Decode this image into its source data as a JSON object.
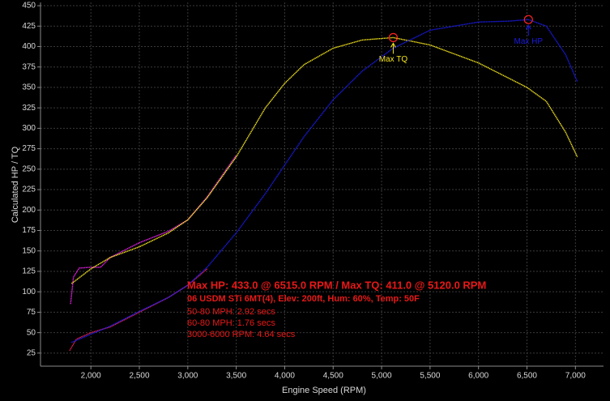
{
  "chart_data": {
    "type": "line",
    "xlabel": "Engine Speed (RPM)",
    "ylabel": "Calculated HP / TQ",
    "xlim": [
      1480,
      7290
    ],
    "ylim": [
      9,
      454
    ],
    "xticks": [
      {
        "value": 2000,
        "label": "2,000"
      },
      {
        "value": 2500,
        "label": "2,500"
      },
      {
        "value": 3000,
        "label": "3,000"
      },
      {
        "value": 3500,
        "label": "3,500"
      },
      {
        "value": 4000,
        "label": "4,000"
      },
      {
        "value": 4500,
        "label": "4,500"
      },
      {
        "value": 5000,
        "label": "5,000"
      },
      {
        "value": 5500,
        "label": "5,500"
      },
      {
        "value": 6000,
        "label": "6,000"
      },
      {
        "value": 6500,
        "label": "6,500"
      },
      {
        "value": 7000,
        "label": "7,000"
      }
    ],
    "yticks": [
      25,
      50,
      75,
      100,
      125,
      150,
      175,
      200,
      225,
      250,
      275,
      300,
      325,
      350,
      375,
      400,
      425,
      450
    ],
    "grid": true,
    "series": [
      {
        "color": "#e020e0",
        "x": [
          1790,
          1820,
          1880,
          2000,
          2100,
          2200,
          2500,
          2800,
          3000,
          3200,
          3500
        ],
        "values": [
          85,
          118,
          129,
          130,
          130,
          142,
          160,
          174,
          188,
          216,
          267
        ]
      },
      {
        "color": "#f5e51e",
        "x": [
          1800,
          2000,
          2200,
          2500,
          2800,
          3000,
          3200,
          3500,
          3800,
          4000,
          4200,
          4500,
          4800,
          5120,
          5500,
          6000,
          6300,
          6500,
          6700,
          6900,
          7020
        ],
        "values": [
          110,
          128,
          142,
          155,
          172,
          188,
          215,
          265,
          325,
          355,
          378,
          398,
          408,
          411,
          402,
          380,
          362,
          350,
          333,
          295,
          265
        ]
      },
      {
        "color": "#e02050",
        "x": [
          1780,
          1850,
          2000,
          2200,
          2500,
          2800,
          3000,
          3200
        ],
        "values": [
          28,
          42,
          50,
          57,
          75,
          93,
          108,
          128
        ]
      },
      {
        "color": "#1a1ae0",
        "x": [
          1800,
          2000,
          2200,
          2500,
          2800,
          3000,
          3200,
          3500,
          3800,
          4000,
          4200,
          4500,
          4800,
          5120,
          5500,
          6000,
          6300,
          6515,
          6700,
          6900,
          7020
        ],
        "values": [
          38,
          48,
          58,
          76,
          93,
          108,
          130,
          172,
          220,
          255,
          290,
          335,
          370,
          398,
          420,
          430,
          431,
          433,
          425,
          390,
          357
        ]
      }
    ],
    "annotations": [
      {
        "text": "Max TQ",
        "x": 5120,
        "y": 411,
        "color": "#f5e51e"
      },
      {
        "text": "Max HP",
        "x": 6515,
        "y": 433,
        "color": "#1a1ae0"
      }
    ],
    "notes": [
      "Max HP: 433.0 @ 6515.0 RPM / Max TQ: 411.0 @ 5120.0 RPM",
      "06 USDM STi 6MT(4), Elev: 200ft, Hum: 60%, Temp: 50F",
      "50-80 MPH: 2.92 secs",
      "60-80 MPH: 1.76 secs",
      "3000-6000 RPM: 4.64 secs"
    ]
  }
}
